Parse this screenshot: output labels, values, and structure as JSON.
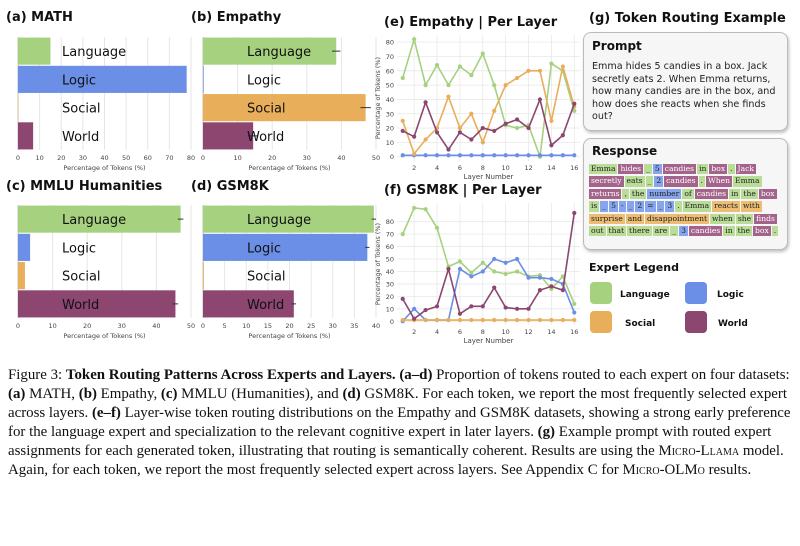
{
  "colors": {
    "Language": "#a6d17f",
    "Logic": "#6b8ee6",
    "Social": "#e8ae5a",
    "World": "#8c4670"
  },
  "chart_data": [
    {
      "type": "bar",
      "panel": "a",
      "title": "(a) MATH",
      "categories": [
        "Language",
        "Logic",
        "Social",
        "World"
      ],
      "values": [
        15.0,
        78.0,
        0.2,
        7.0
      ],
      "errors": [
        0,
        0,
        0,
        0
      ],
      "xlabel": "Percentage of Tokens (%)",
      "xlim": [
        0,
        80
      ],
      "xticks": [
        "0",
        "10",
        "20",
        "30",
        "40",
        "50",
        "60",
        "70",
        "80"
      ]
    },
    {
      "type": "bar",
      "panel": "b",
      "title": "(b) Empathy",
      "categories": [
        "Language",
        "Logic",
        "Social",
        "World"
      ],
      "values": [
        38.5,
        0.2,
        47.0,
        14.5
      ],
      "errors": [
        1.2,
        0,
        1.5,
        1.5
      ],
      "xlabel": "Percentage of Tokens (%)",
      "xlim": [
        0,
        50
      ],
      "xticks": [
        "0",
        "10",
        "20",
        "30",
        "40",
        "50"
      ]
    },
    {
      "type": "bar",
      "panel": "c",
      "title": "(c) MMLU Humanities",
      "categories": [
        "Language",
        "Logic",
        "Social",
        "World"
      ],
      "values": [
        47.0,
        3.5,
        2.0,
        45.5
      ],
      "errors": [
        0.8,
        0,
        0,
        0.8
      ],
      "xlabel": "Percentage of Tokens (%)",
      "xlim": [
        0,
        50
      ],
      "xticks": [
        "0",
        "10",
        "20",
        "30",
        "40",
        "50"
      ]
    },
    {
      "type": "bar",
      "panel": "d",
      "title": "(d) GSM8K",
      "categories": [
        "Language",
        "Logic",
        "Social",
        "World"
      ],
      "values": [
        39.5,
        38.0,
        0.2,
        21.0
      ],
      "errors": [
        0.5,
        0.5,
        0,
        0.5
      ],
      "xlabel": "Percentage of Tokens (%)",
      "xlim": [
        0,
        40
      ],
      "xticks": [
        "0",
        "5",
        "10",
        "15",
        "20",
        "25",
        "30",
        "35",
        "40"
      ]
    },
    {
      "type": "line",
      "panel": "e",
      "title": "(e) Empathy | Per Layer",
      "xlabel": "Layer Number",
      "ylabel": "Percentage of Tokens (%)",
      "x": [
        1,
        2,
        3,
        4,
        5,
        6,
        7,
        8,
        9,
        10,
        11,
        12,
        13,
        14,
        15,
        16
      ],
      "xlim": [
        0.5,
        16.5
      ],
      "ylim": [
        -3,
        85
      ],
      "xticks": [
        2,
        4,
        6,
        8,
        10,
        12,
        14,
        16
      ],
      "yticks": [
        0,
        10,
        20,
        30,
        40,
        50,
        60,
        70,
        80
      ],
      "series": [
        {
          "name": "Language",
          "values": [
            55,
            82,
            50,
            64,
            50,
            63,
            57,
            72,
            50,
            22,
            20,
            22,
            0,
            65,
            60,
            32
          ]
        },
        {
          "name": "Logic",
          "values": [
            1,
            1,
            1,
            1,
            1,
            1,
            1,
            1,
            1,
            1,
            1,
            1,
            1,
            1,
            1,
            1
          ]
        },
        {
          "name": "Social",
          "values": [
            25,
            2,
            12,
            20,
            42,
            20,
            30,
            10,
            32,
            50,
            55,
            60,
            60,
            25,
            63,
            35
          ]
        },
        {
          "name": "World",
          "values": [
            18,
            14,
            38,
            17,
            5,
            17,
            12,
            20,
            18,
            23,
            26,
            20,
            40,
            8,
            15,
            37
          ]
        }
      ]
    },
    {
      "type": "line",
      "panel": "f",
      "title": "(f) GSM8K | Per Layer",
      "xlabel": "Layer Number",
      "ylabel": "Percentage of Tokens (%)",
      "x": [
        1,
        2,
        3,
        4,
        5,
        6,
        7,
        8,
        9,
        10,
        11,
        12,
        13,
        14,
        15,
        16
      ],
      "xlim": [
        0.5,
        16.5
      ],
      "ylim": [
        -3,
        95
      ],
      "xticks": [
        2,
        4,
        6,
        8,
        10,
        12,
        14,
        16
      ],
      "yticks": [
        0,
        10,
        20,
        30,
        40,
        50,
        60,
        70,
        80
      ],
      "series": [
        {
          "name": "Language",
          "values": [
            70,
            91,
            90,
            75,
            44,
            48,
            39,
            47,
            40,
            38,
            40,
            36,
            37,
            26,
            36,
            14
          ]
        },
        {
          "name": "Logic",
          "values": [
            0,
            10,
            1,
            1,
            1,
            42,
            36,
            40,
            50,
            47,
            50,
            35,
            35,
            34,
            30,
            7
          ]
        },
        {
          "name": "Social",
          "values": [
            1,
            1,
            1,
            1,
            1,
            1,
            1,
            1,
            1,
            1,
            1,
            1,
            1,
            1,
            1,
            1
          ]
        },
        {
          "name": "World",
          "values": [
            18,
            2,
            9,
            12,
            42,
            6,
            12,
            12,
            27,
            11,
            10,
            10,
            25,
            28,
            25,
            87
          ]
        }
      ]
    }
  ],
  "routing": {
    "title": "(g) Token Routing Example",
    "prompt_title": "Prompt",
    "prompt_text": "Emma hides 5 candies in a box. Jack secretly eats 2. When Emma returns, how many candies are in the box, and how does she reacts when she finds out?",
    "response_title": "Response",
    "tokens": [
      {
        "t": "Emma",
        "e": "Language"
      },
      {
        "t": "hides",
        "e": "World"
      },
      {
        "t": "_",
        "e": "Language"
      },
      {
        "t": "5",
        "e": "Logic"
      },
      {
        "t": "candies",
        "e": "World"
      },
      {
        "t": "in",
        "e": "Language"
      },
      {
        "t": "box",
        "e": "World"
      },
      {
        "t": ".",
        "e": "Language"
      },
      {
        "t": "Jack",
        "e": "World"
      },
      {
        "t": "secretly",
        "e": "World"
      },
      {
        "t": "eats",
        "e": "Language"
      },
      {
        "t": "_",
        "e": "Language"
      },
      {
        "t": "2",
        "e": "Logic"
      },
      {
        "t": "candies",
        "e": "World"
      },
      {
        "t": ".",
        "e": "Language"
      },
      {
        "t": "When",
        "e": "World"
      },
      {
        "t": "Emma",
        "e": "Language"
      },
      {
        "t": "returns",
        "e": "World"
      },
      {
        "t": ",",
        "e": "Language"
      },
      {
        "t": "the",
        "e": "Language"
      },
      {
        "t": "number",
        "e": "Logic"
      },
      {
        "t": "of",
        "e": "Language"
      },
      {
        "t": "candies",
        "e": "World"
      },
      {
        "t": "in",
        "e": "Language"
      },
      {
        "t": "the",
        "e": "Language"
      },
      {
        "t": "box",
        "e": "World"
      },
      {
        "t": "is",
        "e": "Language"
      },
      {
        "t": "_",
        "e": "Logic"
      },
      {
        "t": "5",
        "e": "Logic"
      },
      {
        "t": "-",
        "e": "Logic"
      },
      {
        "t": "_",
        "e": "Logic"
      },
      {
        "t": "2",
        "e": "Logic"
      },
      {
        "t": "=",
        "e": "Logic"
      },
      {
        "t": "_",
        "e": "Logic"
      },
      {
        "t": "3",
        "e": "Logic"
      },
      {
        "t": ".",
        "e": "Language"
      },
      {
        "t": "Emma",
        "e": "Language"
      },
      {
        "t": "reacts",
        "e": "Social"
      },
      {
        "t": "with",
        "e": "Social"
      },
      {
        "t": "surprise",
        "e": "Social"
      },
      {
        "t": "and",
        "e": "Social"
      },
      {
        "t": "disappointment",
        "e": "Social"
      },
      {
        "t": "when",
        "e": "Language"
      },
      {
        "t": "she",
        "e": "Language"
      },
      {
        "t": "finds",
        "e": "World"
      },
      {
        "t": "out",
        "e": "Language"
      },
      {
        "t": "that",
        "e": "Language"
      },
      {
        "t": "there",
        "e": "Language"
      },
      {
        "t": "are",
        "e": "Language"
      },
      {
        "t": "_",
        "e": "Language"
      },
      {
        "t": "3",
        "e": "Logic"
      },
      {
        "t": "candies",
        "e": "World"
      },
      {
        "t": "in",
        "e": "Language"
      },
      {
        "t": "the",
        "e": "Language"
      },
      {
        "t": "box",
        "e": "World"
      },
      {
        "t": ".",
        "e": "Language"
      }
    ],
    "legend_title": "Expert Legend",
    "legend": [
      {
        "name": "Language",
        "label": "Language"
      },
      {
        "name": "Logic",
        "label": "Logic"
      },
      {
        "name": "Social",
        "label": "Social"
      },
      {
        "name": "World",
        "label": "World"
      }
    ]
  },
  "caption": {
    "lead": "Figure 3:  ",
    "bold_title": "Token Routing Patterns Across Experts and Layers.",
    "parts": [
      {
        "b": true,
        "t": " (a–d)"
      },
      {
        "b": false,
        "t": " Proportion of tokens routed to each expert on four datasets: "
      },
      {
        "b": true,
        "t": "(a)"
      },
      {
        "b": false,
        "t": " MATH, "
      },
      {
        "b": true,
        "t": "(b)"
      },
      {
        "b": false,
        "t": " Empathy, "
      },
      {
        "b": true,
        "t": "(c)"
      },
      {
        "b": false,
        "t": " MMLU (Humanities), and "
      },
      {
        "b": true,
        "t": "(d)"
      },
      {
        "b": false,
        "t": " GSM8K. For each token, we report the most frequently selected expert across layers. "
      },
      {
        "b": true,
        "t": "(e–f)"
      },
      {
        "b": false,
        "t": " Layer-wise token routing distributions on the Empathy and GSM8K datasets, showing a strong early preference for the language expert and specialization to the relevant cognitive expert in later layers. "
      },
      {
        "b": true,
        "t": "(g)"
      },
      {
        "b": false,
        "t": " Example prompt with routed expert assignments for each generated token, illustrating that routing is semantically coherent. Results are using the "
      },
      {
        "sc": true,
        "t": "Micro-Llama"
      },
      {
        "b": false,
        "t": " model. Again, for each token, we report the most frequently selected expert across layers. See Appendix C for "
      },
      {
        "sc": true,
        "t": "Micro-OLMo"
      },
      {
        "b": false,
        "t": " results."
      }
    ]
  }
}
